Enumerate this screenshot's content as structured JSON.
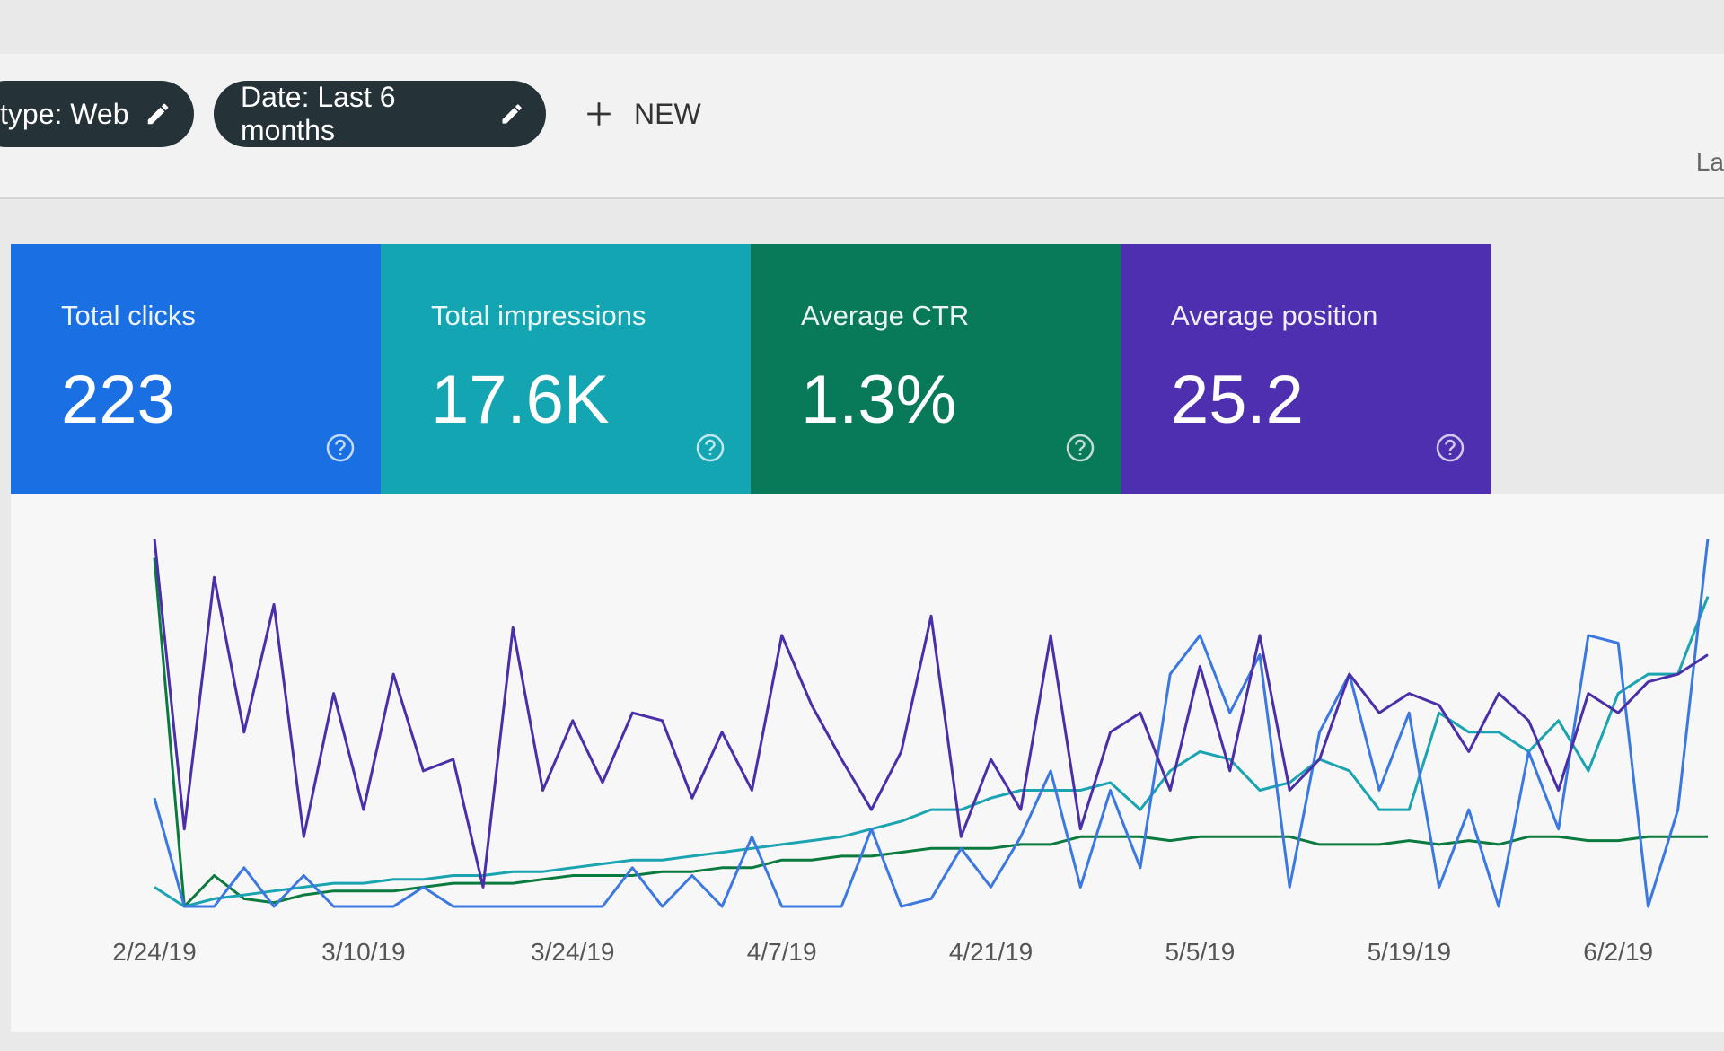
{
  "top_bar": {
    "filters": [
      "type: Web",
      "Date: Last 6 months"
    ],
    "new_button": "NEW",
    "right_text": "La"
  },
  "cards": [
    {
      "label": "Total clicks",
      "value": "223",
      "color": "#1a6fe3"
    },
    {
      "label": "Total impressions",
      "value": "17.6K",
      "color": "#13a5b2"
    },
    {
      "label": "Average CTR",
      "value": "1.3%",
      "color": "#087a5a"
    },
    {
      "label": "Average position",
      "value": "25.2",
      "color": "#4d2fb0"
    }
  ],
  "chart_data": {
    "type": "line",
    "categories": [
      "2/24/19",
      null,
      null,
      null,
      null,
      null,
      null,
      "3/10/19",
      null,
      null,
      null,
      null,
      null,
      null,
      "3/24/19",
      null,
      null,
      null,
      null,
      null,
      null,
      "4/7/19",
      null,
      null,
      null,
      null,
      null,
      null,
      "4/21/19",
      null,
      null,
      null,
      null,
      null,
      null,
      "5/5/19",
      null,
      null,
      null,
      null,
      null,
      null,
      "5/19/19",
      null,
      null,
      null,
      null,
      null,
      null,
      "6/2/19",
      null,
      null,
      null
    ],
    "series": [
      {
        "color": "#0b7a3e",
        "values": [
          90,
          0,
          8,
          2,
          1,
          3,
          4,
          4,
          4,
          5,
          6,
          6,
          6,
          7,
          8,
          8,
          8,
          9,
          9,
          10,
          10,
          12,
          12,
          13,
          13,
          14,
          15,
          15,
          15,
          16,
          16,
          18,
          18,
          18,
          17,
          18,
          18,
          18,
          18,
          16,
          16,
          16,
          17,
          16,
          17,
          16,
          18,
          18,
          17,
          17,
          18,
          18,
          18
        ]
      },
      {
        "color": "#1aa3b0",
        "values": [
          5,
          0,
          2,
          3,
          4,
          5,
          6,
          6,
          7,
          7,
          8,
          8,
          9,
          9,
          10,
          11,
          12,
          12,
          13,
          14,
          15,
          16,
          17,
          18,
          20,
          22,
          25,
          25,
          28,
          30,
          30,
          30,
          32,
          25,
          35,
          40,
          38,
          30,
          32,
          38,
          35,
          25,
          25,
          50,
          45,
          45,
          40,
          48,
          35,
          55,
          60,
          60,
          80
        ]
      },
      {
        "color": "#3b78e0",
        "values": [
          28,
          0,
          0,
          10,
          0,
          8,
          0,
          0,
          0,
          5,
          0,
          0,
          0,
          0,
          0,
          0,
          10,
          0,
          8,
          0,
          18,
          0,
          0,
          0,
          20,
          0,
          2,
          15,
          5,
          18,
          35,
          5,
          30,
          10,
          60,
          70,
          50,
          65,
          5,
          45,
          60,
          30,
          50,
          5,
          25,
          0,
          40,
          20,
          70,
          68,
          0,
          25,
          95
        ]
      },
      {
        "color": "#4a2fa8",
        "values": [
          95,
          20,
          85,
          45,
          78,
          18,
          55,
          25,
          60,
          35,
          38,
          5,
          72,
          30,
          48,
          32,
          50,
          48,
          28,
          45,
          30,
          70,
          52,
          38,
          25,
          40,
          75,
          18,
          38,
          25,
          70,
          20,
          45,
          50,
          30,
          62,
          35,
          70,
          30,
          38,
          60,
          50,
          55,
          52,
          40,
          55,
          48,
          30,
          55,
          50,
          58,
          60,
          65
        ]
      }
    ]
  }
}
